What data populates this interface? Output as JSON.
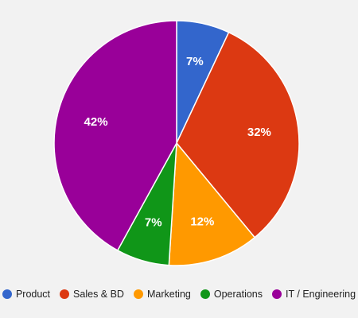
{
  "chart_data": {
    "type": "pie",
    "title": "",
    "legend_position": "bottom",
    "slices": [
      {
        "name": "Product",
        "value": 7,
        "label": "7%",
        "color": "#3366cc"
      },
      {
        "name": "Sales & BD",
        "value": 32,
        "label": "32%",
        "color": "#dc3912"
      },
      {
        "name": "Marketing",
        "value": 12,
        "label": "12%",
        "color": "#ff9900"
      },
      {
        "name": "Operations",
        "value": 7,
        "label": "7%",
        "color": "#109618"
      },
      {
        "name": "IT / Engineering",
        "value": 42,
        "label": "42%",
        "color": "#990099"
      }
    ]
  }
}
